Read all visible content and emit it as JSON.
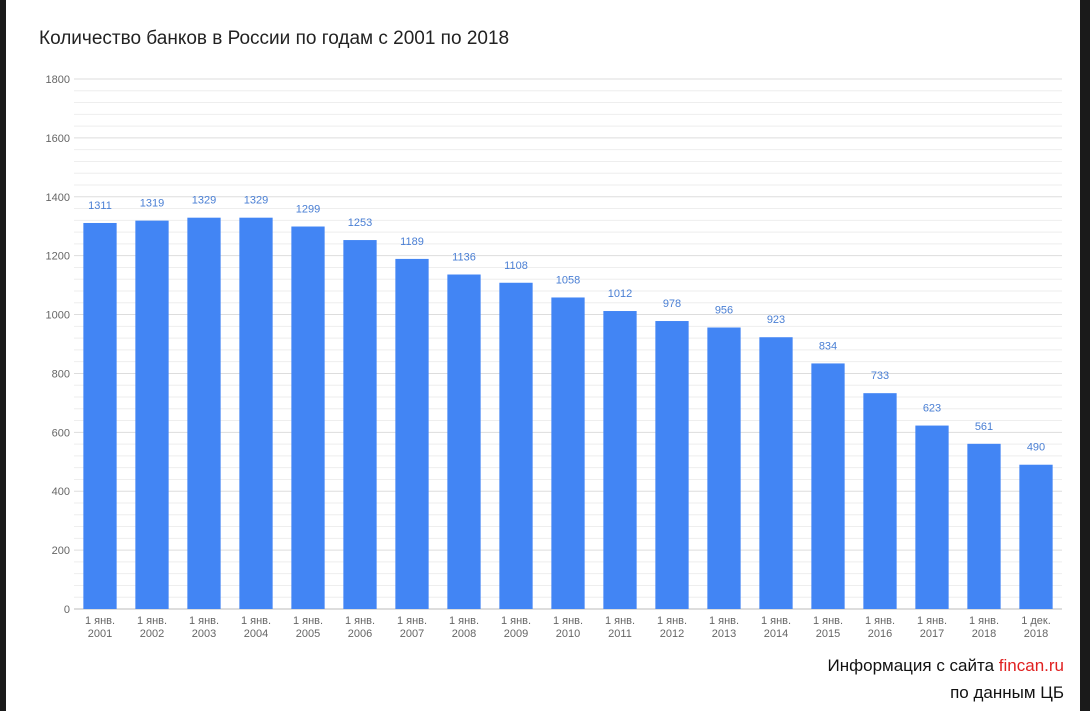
{
  "chart_data": {
    "type": "bar",
    "title": "Количество банков в России по годам с 2001 по 2018",
    "categories": [
      [
        "1 янв.",
        "2001"
      ],
      [
        "1 янв.",
        "2002"
      ],
      [
        "1 янв.",
        "2003"
      ],
      [
        "1 янв.",
        "2004"
      ],
      [
        "1 янв.",
        "2005"
      ],
      [
        "1 янв.",
        "2006"
      ],
      [
        "1 янв.",
        "2007"
      ],
      [
        "1 янв.",
        "2008"
      ],
      [
        "1 янв.",
        "2009"
      ],
      [
        "1 янв.",
        "2010"
      ],
      [
        "1 янв.",
        "2011"
      ],
      [
        "1 янв.",
        "2012"
      ],
      [
        "1 янв.",
        "2013"
      ],
      [
        "1 янв.",
        "2014"
      ],
      [
        "1 янв.",
        "2015"
      ],
      [
        "1 янв.",
        "2016"
      ],
      [
        "1 янв.",
        "2017"
      ],
      [
        "1 янв.",
        "2018"
      ],
      [
        "1 дек.",
        "2018"
      ]
    ],
    "values": [
      1311,
      1319,
      1329,
      1329,
      1299,
      1253,
      1189,
      1136,
      1108,
      1058,
      1012,
      978,
      956,
      923,
      834,
      733,
      623,
      561,
      490
    ],
    "ylim": [
      0,
      1800
    ],
    "yticks": [
      0,
      200,
      400,
      600,
      800,
      1000,
      1200,
      1400,
      1600,
      1800
    ],
    "grid": true,
    "data_labels": true,
    "colors": {
      "bar": "#4285f4",
      "label": "#4a7fd4",
      "tick": "#666666",
      "grid": "#dddddd",
      "minor_grid": "#eeeeee"
    }
  },
  "footer": {
    "line1_prefix": "Информация с сайта ",
    "line1_site": "fincan.ru",
    "line2": "по данным ЦБ"
  }
}
